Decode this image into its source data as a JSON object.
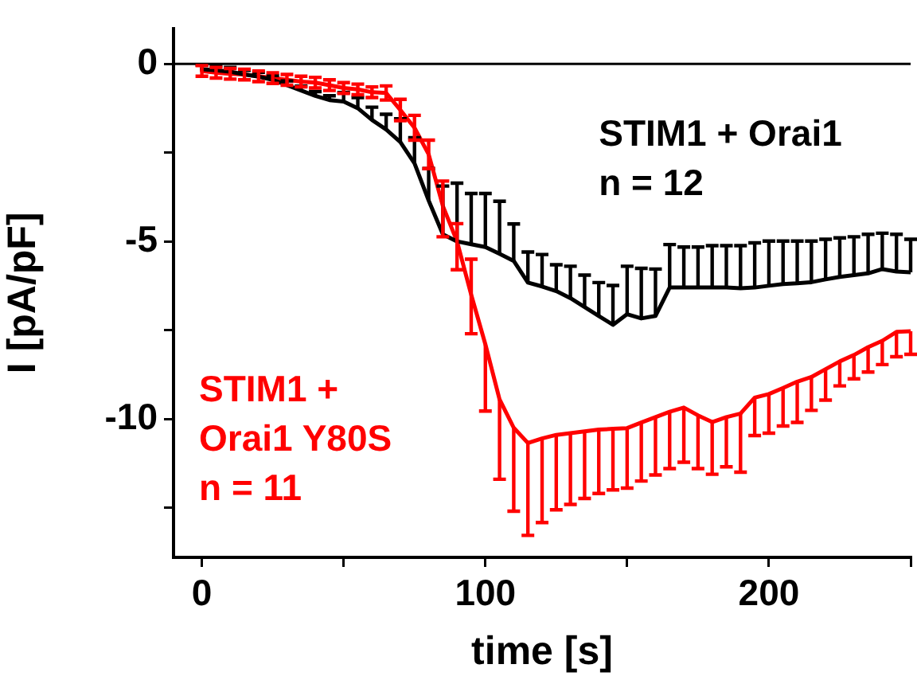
{
  "chart_data": {
    "type": "line",
    "xlabel": "time [s]",
    "ylabel": "I [pA/pF]",
    "x": [
      0,
      5,
      10,
      15,
      20,
      25,
      30,
      35,
      40,
      45,
      50,
      55,
      60,
      65,
      70,
      75,
      80,
      85,
      90,
      95,
      100,
      105,
      110,
      115,
      120,
      125,
      130,
      135,
      140,
      145,
      150,
      155,
      160,
      165,
      170,
      175,
      180,
      185,
      190,
      195,
      200,
      205,
      210,
      215,
      220,
      225,
      230,
      235,
      240,
      245,
      250
    ],
    "xlim": [
      -10,
      250
    ],
    "xticks": [
      0,
      {
        "value": 50,
        "label": null
      },
      100,
      {
        "value": 150,
        "label": null
      },
      200,
      {
        "value": 250,
        "label": null
      }
    ],
    "ylim": [
      -13.9,
      1
    ],
    "yticks": [
      0,
      {
        "value": -2.5,
        "label": null
      },
      -5,
      {
        "value": -7.5,
        "label": null
      },
      -10,
      {
        "value": -12.5,
        "label": null
      }
    ],
    "ref_lines": [
      {
        "axis": "y",
        "value": 0,
        "color": "#000000"
      }
    ],
    "legend": false,
    "grid": false,
    "marker": "none",
    "line_style": "solid",
    "annotations": [
      "n = 12",
      "n = 11"
    ],
    "series": [
      {
        "name": "STIM1 + Orai1",
        "color": "#000000",
        "values": [
          -0.15,
          -0.18,
          -0.22,
          -0.3,
          -0.36,
          -0.45,
          -0.6,
          -0.75,
          -0.9,
          -1.02,
          -1.06,
          -1.25,
          -1.58,
          -1.85,
          -2.2,
          -2.8,
          -3.85,
          -4.8,
          -5.0,
          -5.08,
          -5.16,
          -5.35,
          -5.55,
          -6.16,
          -6.27,
          -6.4,
          -6.6,
          -6.85,
          -7.1,
          -7.35,
          -7.05,
          -7.17,
          -7.1,
          -6.3,
          -6.3,
          -6.3,
          -6.3,
          -6.3,
          -6.32,
          -6.3,
          -6.25,
          -6.2,
          -6.18,
          -6.15,
          -6.07,
          -6.0,
          -5.95,
          -5.9,
          -5.78,
          -5.85,
          -5.87
        ],
        "errors": [
          [
            -0.15,
            -0.03
          ],
          [
            -0.18,
            -0.06
          ],
          [
            -0.22,
            -0.1
          ],
          [
            -0.3,
            -0.18
          ],
          [
            -0.36,
            -0.24
          ],
          [
            -0.45,
            -0.33
          ],
          [
            -0.6,
            -0.48
          ],
          [
            -0.75,
            -0.63
          ],
          [
            -0.9,
            -0.78
          ],
          [
            -1.02,
            -0.9
          ],
          [
            -1.06,
            -0.81
          ],
          [
            -1.25,
            -0.95
          ],
          [
            -1.58,
            -1.22
          ],
          [
            -1.85,
            -1.42
          ],
          [
            -2.2,
            -1.55
          ],
          [
            -2.8,
            -2.08
          ],
          [
            -3.85,
            -2.95
          ],
          [
            -4.8,
            -3.44
          ],
          [
            -5.0,
            -3.36
          ],
          [
            -5.08,
            -3.65
          ],
          [
            -5.16,
            -3.65
          ],
          [
            -5.35,
            -3.87
          ],
          [
            -5.55,
            -4.51
          ],
          [
            -6.16,
            -5.3
          ],
          [
            -6.27,
            -5.37
          ],
          [
            -6.4,
            -5.66
          ],
          [
            -6.6,
            -5.7
          ],
          [
            -6.85,
            -5.95
          ],
          [
            -7.1,
            -6.16
          ],
          [
            -7.35,
            -6.24
          ],
          [
            -7.05,
            -5.7
          ],
          [
            -7.17,
            -5.76
          ],
          [
            -7.1,
            -5.78
          ],
          [
            -6.3,
            -5.09
          ],
          [
            -6.3,
            -5.16
          ],
          [
            -6.3,
            -5.16
          ],
          [
            -6.3,
            -5.12
          ],
          [
            -6.3,
            -5.12
          ],
          [
            -6.32,
            -5.12
          ],
          [
            -6.3,
            -5.04
          ],
          [
            -6.25,
            -4.99
          ],
          [
            -6.2,
            -4.99
          ],
          [
            -6.18,
            -4.99
          ],
          [
            -6.15,
            -4.99
          ],
          [
            -6.07,
            -4.94
          ],
          [
            -6.0,
            -4.9
          ],
          [
            -5.95,
            -4.87
          ],
          [
            -5.9,
            -4.8
          ],
          [
            -5.78,
            -4.77
          ],
          [
            -5.85,
            -4.8
          ],
          [
            -5.87,
            -4.94
          ]
        ]
      },
      {
        "name": "STIM1 + Orai1 Y80S",
        "color": "#ff0000",
        "values": [
          -0.2,
          -0.25,
          -0.28,
          -0.3,
          -0.35,
          -0.4,
          -0.45,
          -0.5,
          -0.53,
          -0.6,
          -0.68,
          -0.72,
          -0.8,
          -0.82,
          -1.3,
          -1.8,
          -2.55,
          -4.0,
          -5.0,
          -6.5,
          -7.9,
          -9.45,
          -10.25,
          -10.68,
          -10.55,
          -10.45,
          -10.4,
          -10.35,
          -10.3,
          -10.28,
          -10.26,
          -10.1,
          -9.95,
          -9.8,
          -9.68,
          -9.9,
          -10.09,
          -9.95,
          -9.85,
          -9.4,
          -9.3,
          -9.13,
          -8.95,
          -8.82,
          -8.6,
          -8.38,
          -8.2,
          -7.98,
          -7.8,
          -7.55,
          -7.53
        ],
        "errors": [
          [
            -0.35,
            -0.05
          ],
          [
            -0.4,
            -0.1
          ],
          [
            -0.43,
            -0.13
          ],
          [
            -0.45,
            -0.15
          ],
          [
            -0.5,
            -0.2
          ],
          [
            -0.55,
            -0.25
          ],
          [
            -0.6,
            -0.3
          ],
          [
            -0.65,
            -0.35
          ],
          [
            -0.68,
            -0.38
          ],
          [
            -0.75,
            -0.45
          ],
          [
            -0.83,
            -0.53
          ],
          [
            -0.87,
            -0.57
          ],
          [
            -0.95,
            -0.65
          ],
          [
            -1.02,
            -0.62
          ],
          [
            -1.6,
            -1.0
          ],
          [
            -2.15,
            -1.45
          ],
          [
            -2.95,
            -2.15
          ],
          [
            -4.87,
            -3.3
          ],
          [
            -5.8,
            -4.5
          ],
          [
            -7.6,
            -5.5
          ],
          [
            -9.78,
            -7.9
          ],
          [
            -11.7,
            -9.45
          ],
          [
            -12.6,
            -10.25
          ],
          [
            -13.28,
            -10.68
          ],
          [
            -12.92,
            -10.55
          ],
          [
            -12.56,
            -10.45
          ],
          [
            -12.41,
            -10.4
          ],
          [
            -12.24,
            -10.35
          ],
          [
            -12.1,
            -10.3
          ],
          [
            -12.0,
            -10.28
          ],
          [
            -11.95,
            -10.26
          ],
          [
            -11.75,
            -10.1
          ],
          [
            -11.58,
            -9.95
          ],
          [
            -11.4,
            -9.8
          ],
          [
            -11.22,
            -9.68
          ],
          [
            -11.4,
            -9.9
          ],
          [
            -11.56,
            -10.09
          ],
          [
            -11.35,
            -9.95
          ],
          [
            -11.5,
            -9.85
          ],
          [
            -10.47,
            -9.4
          ],
          [
            -10.4,
            -9.3
          ],
          [
            -10.2,
            -9.13
          ],
          [
            -10.1,
            -8.95
          ],
          [
            -9.76,
            -8.82
          ],
          [
            -9.47,
            -8.6
          ],
          [
            -9.07,
            -8.38
          ],
          [
            -8.87,
            -8.2
          ],
          [
            -8.68,
            -7.98
          ],
          [
            -8.47,
            -7.8
          ],
          [
            -8.25,
            -7.55
          ],
          [
            -8.18,
            -7.53
          ]
        ]
      }
    ]
  }
}
